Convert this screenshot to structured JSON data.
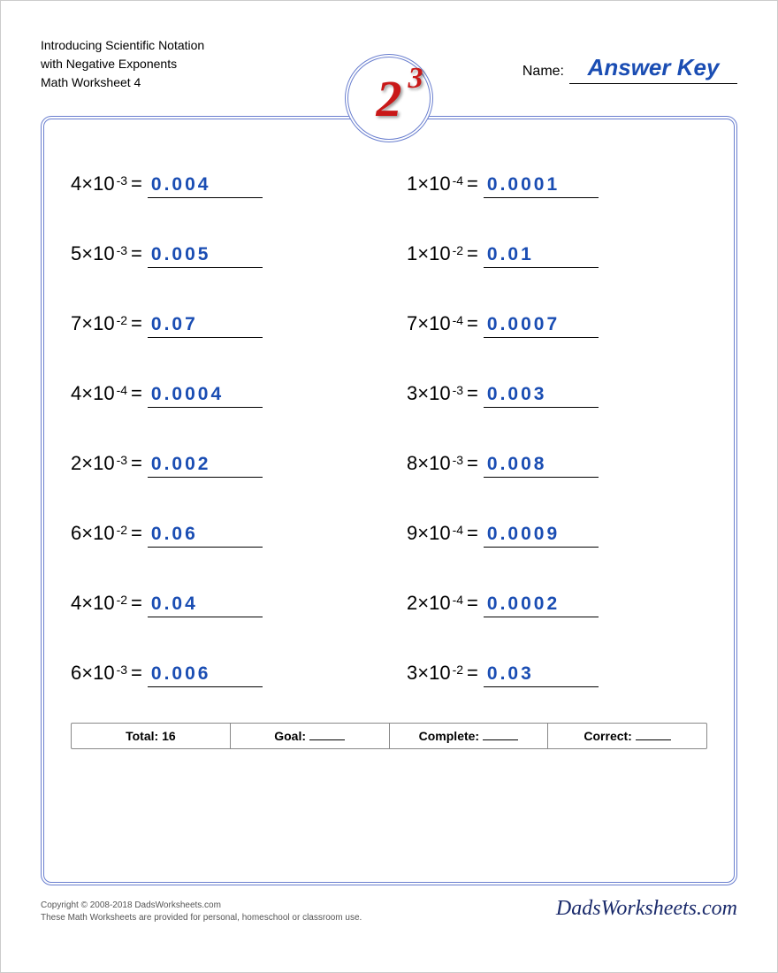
{
  "header": {
    "title_line1": "Introducing Scientific Notation",
    "title_line2": "with Negative Exponents",
    "title_line3": "Math Worksheet 4",
    "name_label": "Name:",
    "name_value": "Answer Key",
    "logo_base": "2",
    "logo_exp": "3"
  },
  "style": {
    "answer_color": "#1a4db3",
    "frame_border_color": "#6a7fcf",
    "logo_color": "#c91818",
    "text_color": "#000000"
  },
  "problems": [
    {
      "coef": "4",
      "exp": "-3",
      "answer": "0.004"
    },
    {
      "coef": "1",
      "exp": "-4",
      "answer": "0.0001"
    },
    {
      "coef": "5",
      "exp": "-3",
      "answer": "0.005"
    },
    {
      "coef": "1",
      "exp": "-2",
      "answer": "0.01"
    },
    {
      "coef": "7",
      "exp": "-2",
      "answer": "0.07"
    },
    {
      "coef": "7",
      "exp": "-4",
      "answer": "0.0007"
    },
    {
      "coef": "4",
      "exp": "-4",
      "answer": "0.0004"
    },
    {
      "coef": "3",
      "exp": "-3",
      "answer": "0.003"
    },
    {
      "coef": "2",
      "exp": "-3",
      "answer": "0.002"
    },
    {
      "coef": "8",
      "exp": "-3",
      "answer": "0.008"
    },
    {
      "coef": "6",
      "exp": "-2",
      "answer": "0.06"
    },
    {
      "coef": "9",
      "exp": "-4",
      "answer": "0.0009"
    },
    {
      "coef": "4",
      "exp": "-2",
      "answer": "0.04"
    },
    {
      "coef": "2",
      "exp": "-4",
      "answer": "0.0002"
    },
    {
      "coef": "6",
      "exp": "-3",
      "answer": "0.006"
    },
    {
      "coef": "3",
      "exp": "-2",
      "answer": "0.03"
    }
  ],
  "footer": {
    "total_label": "Total: 16",
    "goal_label": "Goal:",
    "complete_label": "Complete:",
    "correct_label": "Correct:"
  },
  "copyright": {
    "line1": "Copyright © 2008-2018 DadsWorksheets.com",
    "line2": "These Math Worksheets are provided for personal, homeschool or classroom use.",
    "brand": "DadsWorksheets.com"
  }
}
